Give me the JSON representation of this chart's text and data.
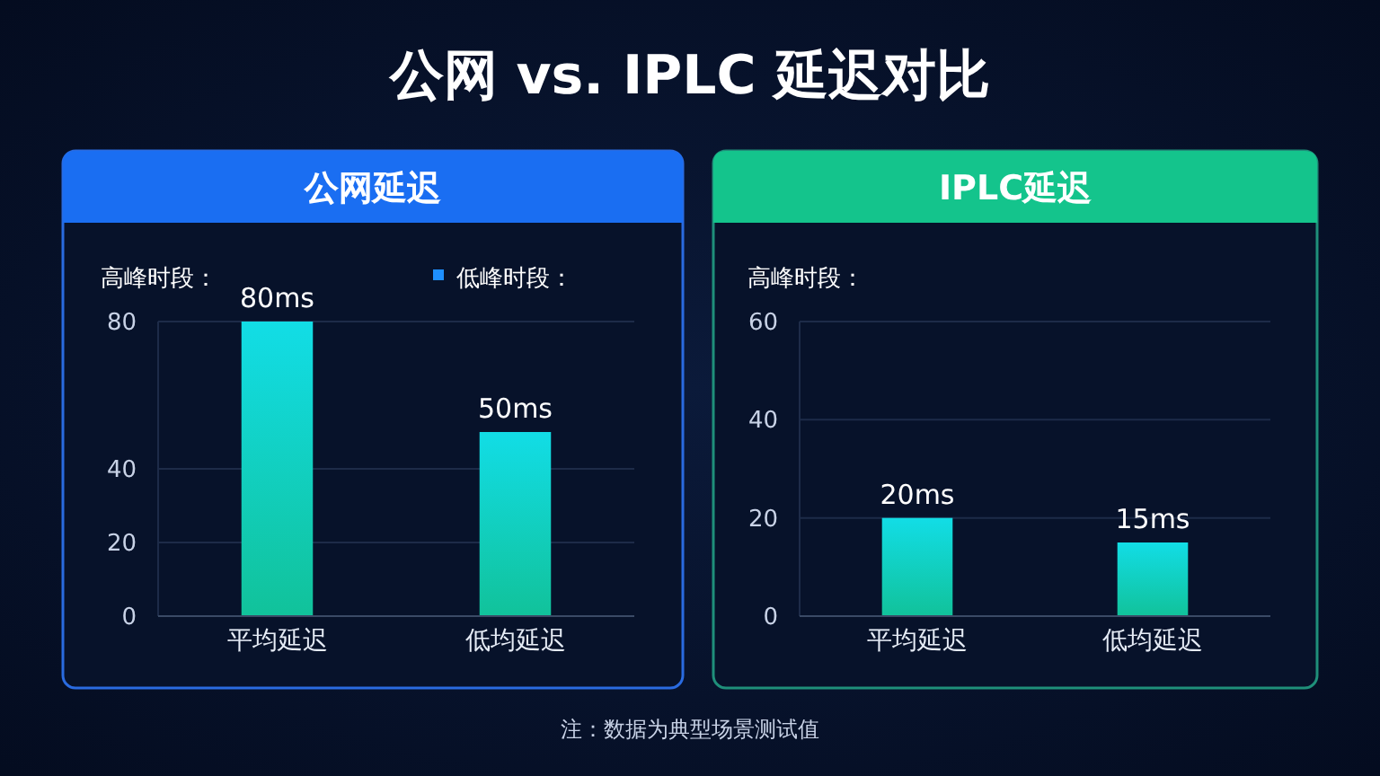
{
  "chart_data": [
    {
      "type": "bar",
      "title": "公网延迟",
      "categories": [
        "平均延迟",
        "低均延迟"
      ],
      "series": [
        {
          "color": "#12dde6",
          "values": [
            80,
            50
          ],
          "value_labels": [
            "80ms",
            "50ms"
          ]
        }
      ],
      "ylim": [
        0,
        80
      ],
      "yticks": [
        0,
        20,
        40,
        80
      ],
      "grid": "y",
      "annotations": [
        "公网 vs. IPLC 延迟对比",
        "高峰时段：",
        "低峰时段："
      ]
    },
    {
      "type": "bar",
      "title": "IPLC延迟",
      "categories": [
        "平均延迟",
        "低均延迟"
      ],
      "series": [
        {
          "color": "#12dde6",
          "values": [
            20,
            15
          ],
          "value_labels": [
            "20ms",
            "15ms"
          ]
        }
      ],
      "ylim": [
        0,
        60
      ],
      "yticks": [
        0,
        20,
        40,
        60
      ],
      "grid": "y",
      "annotations": [
        "高峰时段：",
        "注：数据为典型场景测试值"
      ]
    }
  ]
}
